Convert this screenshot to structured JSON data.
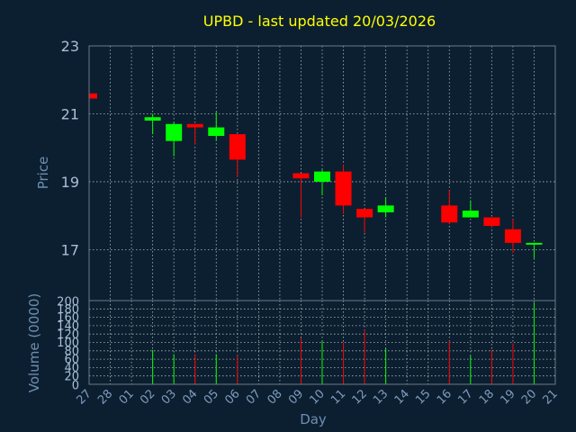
{
  "chart_data": [
    {
      "type": "candlestick",
      "title": "UPBD - last updated 20/03/2026",
      "ylabel": "Price",
      "ylim": [
        15.5,
        23
      ],
      "yticks": [
        17,
        19,
        21,
        23
      ],
      "grid": true,
      "colors": {
        "up": "#00ff00",
        "down": "#ff0000",
        "title": "#ffff00",
        "background": "#0c1f30"
      },
      "x": [
        "27",
        "28",
        "01",
        "02",
        "03",
        "04",
        "05",
        "06",
        "07",
        "08",
        "09",
        "10",
        "11",
        "12",
        "13",
        "14",
        "15",
        "16",
        "17",
        "18",
        "19",
        "20",
        "21"
      ],
      "candles": [
        {
          "day": "27",
          "open": 21.6,
          "high": 21.6,
          "low": 21.45,
          "close": 21.45
        },
        {
          "day": "02",
          "open": 20.8,
          "high": 21.0,
          "low": 20.4,
          "close": 20.9
        },
        {
          "day": "03",
          "open": 20.2,
          "high": 20.75,
          "low": 19.75,
          "close": 20.7
        },
        {
          "day": "04",
          "open": 20.7,
          "high": 20.7,
          "low": 20.1,
          "close": 20.6
        },
        {
          "day": "05",
          "open": 20.35,
          "high": 21.05,
          "low": 20.2,
          "close": 20.6
        },
        {
          "day": "06",
          "open": 20.4,
          "high": 20.4,
          "low": 19.15,
          "close": 19.65
        },
        {
          "day": "09",
          "open": 19.25,
          "high": 19.25,
          "low": 17.95,
          "close": 19.1
        },
        {
          "day": "10",
          "open": 19.0,
          "high": 19.35,
          "low": 18.6,
          "close": 19.3
        },
        {
          "day": "11",
          "open": 19.3,
          "high": 19.5,
          "low": 18.05,
          "close": 18.3
        },
        {
          "day": "12",
          "open": 18.2,
          "high": 18.2,
          "low": 17.5,
          "close": 17.95
        },
        {
          "day": "13",
          "open": 18.1,
          "high": 18.55,
          "low": 17.95,
          "close": 18.3
        },
        {
          "day": "16",
          "open": 18.3,
          "high": 18.75,
          "low": 17.75,
          "close": 17.8
        },
        {
          "day": "17",
          "open": 17.95,
          "high": 18.45,
          "low": 17.95,
          "close": 18.15
        },
        {
          "day": "18",
          "open": 17.95,
          "high": 17.95,
          "low": 17.65,
          "close": 17.7
        },
        {
          "day": "19",
          "open": 17.6,
          "high": 17.9,
          "low": 16.9,
          "close": 17.2
        },
        {
          "day": "20",
          "open": 17.15,
          "high": 17.2,
          "low": 16.75,
          "close": 17.2
        }
      ]
    },
    {
      "type": "bar",
      "ylabel": "Volume (0000)",
      "xlabel": "Day",
      "ylim": [
        0,
        200
      ],
      "yticks": [
        0,
        20,
        40,
        60,
        80,
        100,
        120,
        140,
        160,
        180,
        200
      ],
      "grid": true,
      "categories": [
        "27",
        "28",
        "01",
        "02",
        "03",
        "04",
        "05",
        "06",
        "07",
        "08",
        "09",
        "10",
        "11",
        "12",
        "13",
        "14",
        "15",
        "16",
        "17",
        "18",
        "19",
        "20",
        "21"
      ],
      "values": [
        0,
        0,
        0,
        82,
        72,
        72,
        72,
        70,
        0,
        0,
        110,
        104,
        100,
        130,
        85,
        0,
        0,
        104,
        68,
        82,
        98,
        196,
        0
      ],
      "bar_colors": [
        "",
        "",
        "",
        "#00ff00",
        "#00ff00",
        "#ff0000",
        "#00ff00",
        "#ff0000",
        "",
        "",
        "#ff0000",
        "#00ff00",
        "#ff0000",
        "#ff0000",
        "#00ff00",
        "",
        "",
        "#ff0000",
        "#00ff00",
        "#ff0000",
        "#ff0000",
        "#00ff00",
        ""
      ]
    }
  ]
}
